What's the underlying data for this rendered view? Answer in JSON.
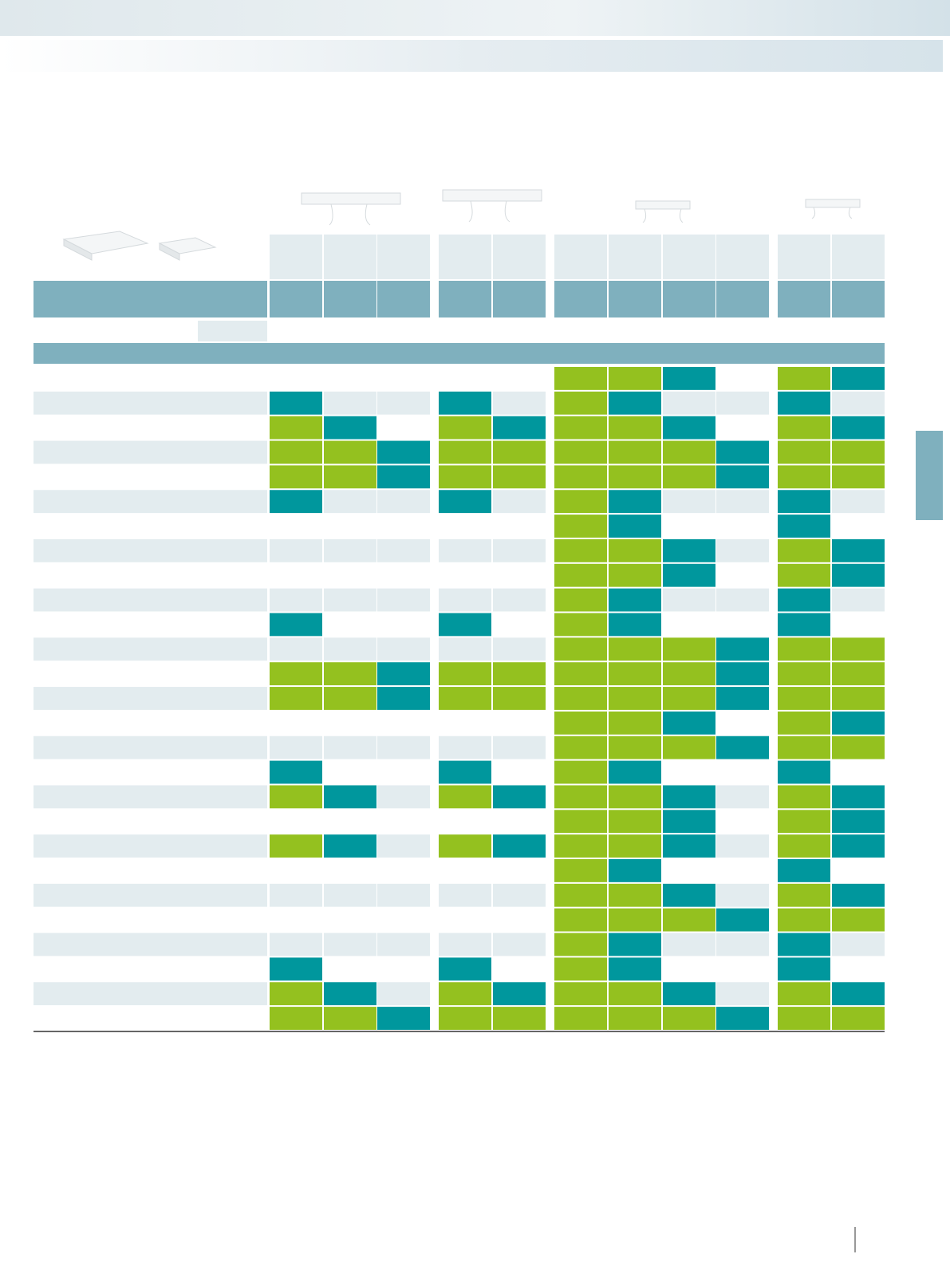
{
  "table": {
    "cell_colors": [
      [
        "",
        "",
        "",
        "",
        "",
        "#94c11f",
        "#94c11f",
        "#00979d",
        "",
        "#94c11f",
        "#00979d"
      ],
      [
        "#00979d",
        "",
        "",
        "#00979d",
        "",
        "#94c11f",
        "#00979d",
        "",
        "",
        "#00979d",
        ""
      ],
      [
        "#94c11f",
        "#00979d",
        "",
        "#94c11f",
        "#00979d",
        "#94c11f",
        "#94c11f",
        "#00979d",
        "",
        "#94c11f",
        "#00979d"
      ],
      [
        "#94c11f",
        "#94c11f",
        "#00979d",
        "#94c11f",
        "#94c11f",
        "#94c11f",
        "#94c11f",
        "#94c11f",
        "#00979d",
        "#94c11f",
        "#94c11f"
      ],
      [
        "#94c11f",
        "#94c11f",
        "#00979d",
        "#94c11f",
        "#94c11f",
        "#94c11f",
        "#94c11f",
        "#94c11f",
        "#00979d",
        "#94c11f",
        "#94c11f"
      ],
      [
        "#00979d",
        "",
        "",
        "#00979d",
        "",
        "#94c11f",
        "#00979d",
        "",
        "",
        "#00979d",
        ""
      ],
      [
        "",
        "",
        "",
        "",
        "",
        "#94c11f",
        "#00979d",
        "",
        "",
        "#00979d",
        ""
      ],
      [
        "",
        "",
        "",
        "",
        "",
        "#94c11f",
        "#94c11f",
        "#00979d",
        "",
        "#94c11f",
        "#00979d"
      ],
      [
        "",
        "",
        "",
        "",
        "",
        "#94c11f",
        "#94c11f",
        "#00979d",
        "",
        "#94c11f",
        "#00979d"
      ],
      [
        "",
        "",
        "",
        "",
        "",
        "#94c11f",
        "#00979d",
        "",
        "",
        "#00979d",
        ""
      ],
      [
        "#00979d",
        "",
        "",
        "#00979d",
        "",
        "#94c11f",
        "#00979d",
        "",
        "",
        "#00979d",
        ""
      ],
      [
        "",
        "",
        "",
        "",
        "",
        "#94c11f",
        "#94c11f",
        "#94c11f",
        "#00979d",
        "#94c11f",
        "#94c11f"
      ],
      [
        "#94c11f",
        "#94c11f",
        "#00979d",
        "#94c11f",
        "#94c11f",
        "#94c11f",
        "#94c11f",
        "#94c11f",
        "#00979d",
        "#94c11f",
        "#94c11f"
      ],
      [
        "#94c11f",
        "#94c11f",
        "#00979d",
        "#94c11f",
        "#94c11f",
        "#94c11f",
        "#94c11f",
        "#94c11f",
        "#00979d",
        "#94c11f",
        "#94c11f"
      ],
      [
        "",
        "",
        "",
        "",
        "",
        "#94c11f",
        "#94c11f",
        "#00979d",
        "",
        "#94c11f",
        "#00979d"
      ],
      [
        "",
        "",
        "",
        "",
        "",
        "#94c11f",
        "#94c11f",
        "#94c11f",
        "#00979d",
        "#94c11f",
        "#94c11f"
      ],
      [
        "#00979d",
        "",
        "",
        "#00979d",
        "",
        "#94c11f",
        "#00979d",
        "",
        "",
        "#00979d",
        ""
      ],
      [
        "#94c11f",
        "#00979d",
        "",
        "#94c11f",
        "#00979d",
        "#94c11f",
        "#94c11f",
        "#00979d",
        "",
        "#94c11f",
        "#00979d"
      ],
      [
        "",
        "",
        "",
        "",
        "",
        "#94c11f",
        "#94c11f",
        "#00979d",
        "",
        "#94c11f",
        "#00979d"
      ],
      [
        "#94c11f",
        "#00979d",
        "",
        "#94c11f",
        "#00979d",
        "#94c11f",
        "#94c11f",
        "#00979d",
        "",
        "#94c11f",
        "#00979d"
      ],
      [
        "",
        "",
        "",
        "",
        "",
        "#94c11f",
        "#00979d",
        "",
        "",
        "#00979d",
        ""
      ],
      [
        "",
        "",
        "",
        "",
        "",
        "#94c11f",
        "#94c11f",
        "#00979d",
        "",
        "#94c11f",
        "#00979d"
      ],
      [
        "",
        "",
        "",
        "",
        "",
        "#94c11f",
        "#94c11f",
        "#94c11f",
        "#00979d",
        "#94c11f",
        "#94c11f"
      ],
      [
        "",
        "",
        "",
        "",
        "",
        "#94c11f",
        "#00979d",
        "",
        "",
        "#00979d",
        ""
      ],
      [
        "#00979d",
        "",
        "",
        "#00979d",
        "",
        "#94c11f",
        "#00979d",
        "",
        "",
        "#00979d",
        ""
      ],
      [
        "#94c11f",
        "#00979d",
        "",
        "#94c11f",
        "#00979d",
        "#94c11f",
        "#94c11f",
        "#00979d",
        "",
        "#94c11f",
        "#00979d"
      ],
      [
        "#94c11f",
        "#94c11f",
        "#00979d",
        "#94c11f",
        "#94c11f",
        "#94c11f",
        "#94c11f",
        "#94c11f",
        "#00979d",
        "#94c11f",
        "#94c11f"
      ]
    ]
  }
}
